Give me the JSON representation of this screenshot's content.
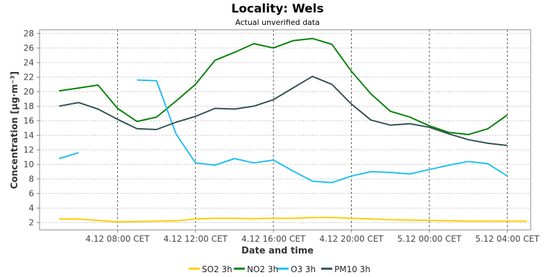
{
  "chart_data": {
    "type": "line",
    "title": "Locality: Wels",
    "subtitle": "Actual unverified data",
    "xlabel": "Date and time",
    "ylabel": "Concentration [µg·m⁻³]",
    "ylim": [
      1,
      28.5
    ],
    "y_ticks": [
      2,
      4,
      6,
      8,
      10,
      12,
      14,
      16,
      18,
      20,
      22,
      24,
      26,
      28
    ],
    "x_ticks": [
      "4.12 08:00 CET",
      "4.12 12:00 CET",
      "4.12 16:00 CET",
      "4.12 20:00 CET",
      "5.12 00:00 CET",
      "5.12 04:00 CET"
    ],
    "x_tick_hours": [
      8,
      12,
      16,
      20,
      24,
      28
    ],
    "x_range_hours": [
      4,
      29.2
    ],
    "grid": true,
    "legend_position": "bottom",
    "x_hours": [
      5,
      6,
      7,
      8,
      9,
      10,
      11,
      12,
      13,
      14,
      15,
      16,
      17,
      18,
      19,
      20,
      21,
      22,
      23,
      24,
      25,
      26,
      27,
      28,
      29
    ],
    "series": [
      {
        "name": "SO2 3h",
        "color": "#FFCC00",
        "values": [
          2.5,
          2.5,
          2.3,
          2.1,
          2.15,
          2.2,
          2.25,
          2.5,
          2.6,
          2.6,
          2.55,
          2.6,
          2.6,
          2.7,
          2.7,
          2.6,
          2.5,
          2.4,
          2.35,
          2.3,
          2.25,
          2.2,
          2.2,
          2.2,
          2.2
        ]
      },
      {
        "name": "NO2 3h",
        "color": "#008000",
        "values": [
          20.1,
          20.5,
          20.9,
          17.7,
          15.9,
          16.5,
          18.7,
          21.0,
          24.3,
          25.4,
          26.6,
          26.0,
          27.0,
          27.3,
          26.5,
          22.8,
          19.7,
          17.3,
          16.5,
          15.3,
          14.4,
          14.1,
          14.9,
          16.8,
          null
        ]
      },
      {
        "name": "O3 3h",
        "color": "#1EBEF0",
        "values": [
          10.8,
          11.6,
          null,
          null,
          21.6,
          21.5,
          14.2,
          10.2,
          9.9,
          10.8,
          10.2,
          10.6,
          9.1,
          7.7,
          7.5,
          8.4,
          9.0,
          8.9,
          8.7,
          9.3,
          9.9,
          10.4,
          10.1,
          8.4,
          null
        ]
      },
      {
        "name": "PM10 3h",
        "color": "#2F4F4F",
        "values": [
          18.0,
          18.5,
          17.6,
          16.2,
          14.9,
          14.8,
          15.8,
          16.6,
          17.7,
          17.6,
          18.0,
          18.9,
          20.5,
          22.1,
          21.0,
          18.3,
          16.1,
          15.4,
          15.6,
          15.1,
          14.2,
          13.4,
          12.9,
          12.6,
          null
        ]
      }
    ]
  }
}
